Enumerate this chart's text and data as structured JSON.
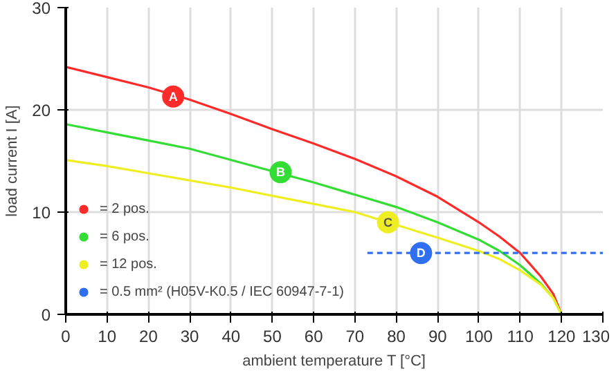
{
  "chart_data": {
    "type": "line",
    "xlabel": "ambient temperature T [°C]",
    "ylabel": "load current I [A]",
    "xlim": [
      0,
      130
    ],
    "ylim": [
      0,
      30
    ],
    "xticks": [
      0,
      10,
      20,
      30,
      40,
      50,
      60,
      70,
      80,
      90,
      100,
      110,
      120,
      130
    ],
    "yticks": [
      0,
      10,
      20,
      30
    ],
    "grid": true,
    "legend": "bottom left",
    "marker": "none",
    "series": [
      {
        "name": "= 2 pos.",
        "color": "#ff2a2a",
        "x": [
          0,
          10,
          20,
          30,
          40,
          50,
          60,
          70,
          80,
          90,
          100,
          105,
          110,
          115,
          118,
          120
        ],
        "values": [
          24.2,
          23.2,
          22.2,
          21.0,
          19.6,
          18.1,
          16.7,
          15.2,
          13.5,
          11.5,
          9.0,
          7.6,
          6.0,
          3.7,
          2.0,
          0
        ]
      },
      {
        "name": "= 6 pos.",
        "color": "#33dd33",
        "x": [
          0,
          10,
          20,
          30,
          40,
          60,
          70,
          80,
          90,
          100,
          105,
          110,
          115,
          118,
          120
        ],
        "values": [
          18.6,
          17.8,
          17.0,
          16.2,
          15.1,
          12.9,
          11.7,
          10.5,
          9.0,
          7.3,
          6.2,
          4.8,
          3.0,
          1.6,
          0
        ]
      },
      {
        "name": "= 12 pos.",
        "color": "#eeee22",
        "x": [
          0,
          10,
          20,
          30,
          40,
          50,
          60,
          70,
          90,
          100,
          105,
          110,
          115,
          118,
          120
        ],
        "values": [
          15.1,
          14.5,
          13.8,
          13.1,
          12.4,
          11.6,
          10.8,
          10.0,
          7.5,
          6.2,
          5.4,
          4.3,
          2.9,
          1.6,
          0
        ]
      },
      {
        "name": "= 0.5 mm² (H05V-K0.5 / IEC 60947-7-1)",
        "color": "#2f6ff0",
        "line_style": "dashed",
        "x": [
          73,
          130
        ],
        "values": [
          6,
          6
        ]
      }
    ],
    "annotations": [
      {
        "text": "A",
        "x": 26,
        "y": 21.3
      },
      {
        "text": "B",
        "x": 52,
        "y": 13.9
      },
      {
        "text": "C",
        "x": 78,
        "y": 9.0
      },
      {
        "text": "D",
        "x": 86,
        "y": 6.0
      }
    ]
  }
}
